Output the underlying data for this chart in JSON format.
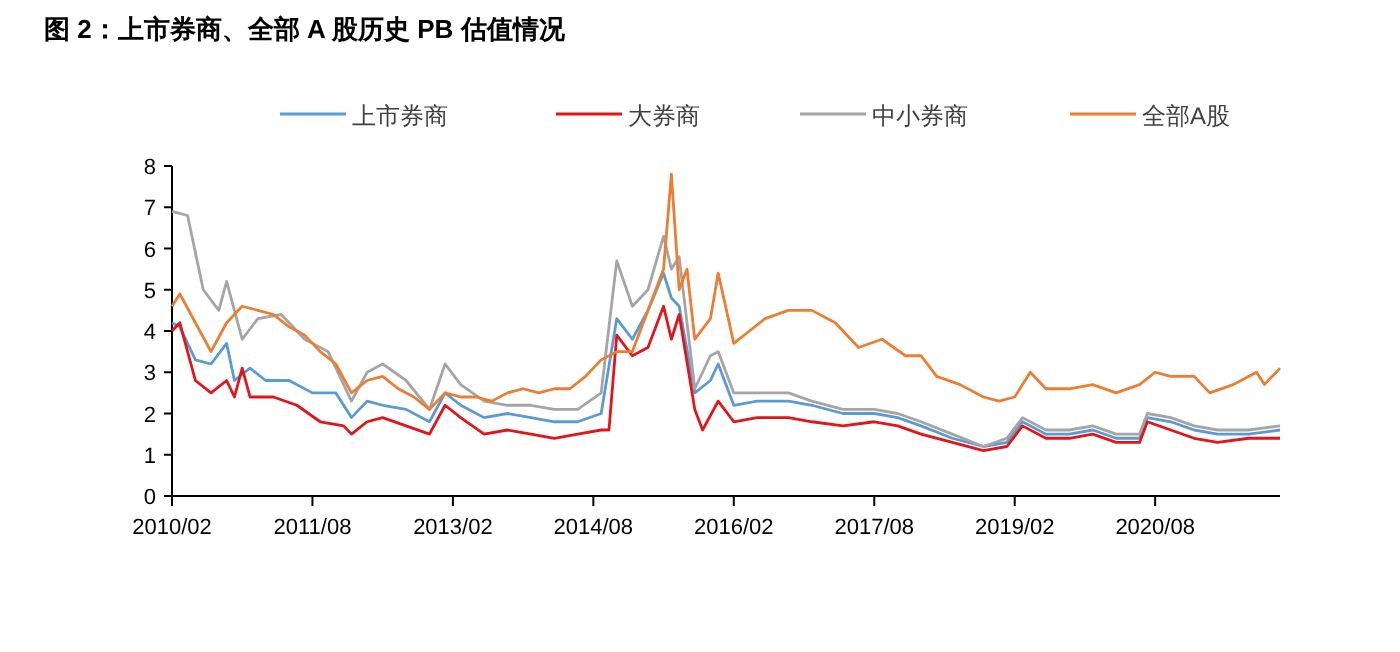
{
  "chart_data": {
    "type": "line",
    "title": "图 2：上市券商、全部 A 股历史 PB 估值情况",
    "xlim": [
      "2010-02",
      "2021-12"
    ],
    "xticks": [
      {
        "value": "2010-02",
        "label": "2010/02"
      },
      {
        "value": "2011-08",
        "label": "2011/08"
      },
      {
        "value": "2013-02",
        "label": "2013/02"
      },
      {
        "value": "2014-08",
        "label": "2014/08"
      },
      {
        "value": "2016-02",
        "label": "2016/02"
      },
      {
        "value": "2017-08",
        "label": "2017/08"
      },
      {
        "value": "2019-02",
        "label": "2019/02"
      },
      {
        "value": "2020-08",
        "label": "2020/08"
      }
    ],
    "ylim": [
      0,
      8
    ],
    "yticks": [
      0,
      1,
      2,
      3,
      4,
      5,
      6,
      7,
      8
    ],
    "legend": "top",
    "grid": false,
    "marker": "none",
    "line_style": "solid",
    "series": [
      {
        "name": "上市券商",
        "color": "#5b9bd5",
        "x": [
          "2010-02",
          "2010-03",
          "2010-05",
          "2010-07",
          "2010-09",
          "2010-10",
          "2010-12",
          "2011-02",
          "2011-05",
          "2011-08",
          "2011-11",
          "2012-01",
          "2012-03",
          "2012-05",
          "2012-08",
          "2012-11",
          "2013-01",
          "2013-03",
          "2013-06",
          "2013-09",
          "2013-12",
          "2014-03",
          "2014-06",
          "2014-09",
          "2014-11",
          "2015-01",
          "2015-03",
          "2015-05",
          "2015-06",
          "2015-07",
          "2015-09",
          "2015-11",
          "2015-12",
          "2016-02",
          "2016-05",
          "2016-09",
          "2016-12",
          "2017-04",
          "2017-08",
          "2017-11",
          "2018-02",
          "2018-06",
          "2018-10",
          "2019-01",
          "2019-03",
          "2019-06",
          "2019-09",
          "2019-12",
          "2020-03",
          "2020-06",
          "2020-07",
          "2020-10",
          "2021-01",
          "2021-04",
          "2021-08",
          "2021-12"
        ],
        "values": [
          4.2,
          4.1,
          3.3,
          3.2,
          3.7,
          2.8,
          3.1,
          2.8,
          2.8,
          2.5,
          2.5,
          1.9,
          2.3,
          2.2,
          2.1,
          1.8,
          2.5,
          2.2,
          1.9,
          2.0,
          1.9,
          1.8,
          1.8,
          2.0,
          4.3,
          3.8,
          4.5,
          5.4,
          4.8,
          4.6,
          2.5,
          2.8,
          3.2,
          2.2,
          2.3,
          2.3,
          2.2,
          2.0,
          2.0,
          1.9,
          1.7,
          1.4,
          1.2,
          1.3,
          1.8,
          1.5,
          1.5,
          1.6,
          1.4,
          1.4,
          1.9,
          1.8,
          1.6,
          1.5,
          1.5,
          1.6
        ]
      },
      {
        "name": "大券商",
        "color": "#e3151a",
        "x": [
          "2010-02",
          "2010-03",
          "2010-05",
          "2010-07",
          "2010-09",
          "2010-10",
          "2010-11",
          "2010-12",
          "2011-03",
          "2011-06",
          "2011-09",
          "2011-12",
          "2012-01",
          "2012-03",
          "2012-05",
          "2012-08",
          "2012-11",
          "2013-01",
          "2013-03",
          "2013-06",
          "2013-09",
          "2013-12",
          "2014-03",
          "2014-06",
          "2014-09",
          "2014-10",
          "2014-11",
          "2015-01",
          "2015-03",
          "2015-05",
          "2015-06",
          "2015-07",
          "2015-09",
          "2015-10",
          "2015-12",
          "2016-02",
          "2016-05",
          "2016-09",
          "2016-12",
          "2017-04",
          "2017-08",
          "2017-11",
          "2018-02",
          "2018-06",
          "2018-10",
          "2019-01",
          "2019-03",
          "2019-06",
          "2019-09",
          "2019-12",
          "2020-03",
          "2020-06",
          "2020-07",
          "2020-10",
          "2021-01",
          "2021-04",
          "2021-08",
          "2021-12"
        ],
        "values": [
          4.0,
          4.2,
          2.8,
          2.5,
          2.8,
          2.4,
          3.1,
          2.4,
          2.4,
          2.2,
          1.8,
          1.7,
          1.5,
          1.8,
          1.9,
          1.7,
          1.5,
          2.2,
          1.9,
          1.5,
          1.6,
          1.5,
          1.4,
          1.5,
          1.6,
          1.6,
          3.9,
          3.4,
          3.6,
          4.6,
          3.8,
          4.4,
          2.1,
          1.6,
          2.3,
          1.8,
          1.9,
          1.9,
          1.8,
          1.7,
          1.8,
          1.7,
          1.5,
          1.3,
          1.1,
          1.2,
          1.7,
          1.4,
          1.4,
          1.5,
          1.3,
          1.3,
          1.8,
          1.6,
          1.4,
          1.3,
          1.4,
          1.4
        ]
      },
      {
        "name": "中小券商",
        "color": "#a5a5a5",
        "x": [
          "2010-02",
          "2010-04",
          "2010-06",
          "2010-08",
          "2010-09",
          "2010-11",
          "2011-01",
          "2011-04",
          "2011-07",
          "2011-10",
          "2012-01",
          "2012-03",
          "2012-05",
          "2012-08",
          "2012-11",
          "2013-01",
          "2013-03",
          "2013-06",
          "2013-09",
          "2013-12",
          "2014-03",
          "2014-06",
          "2014-09",
          "2014-11",
          "2015-01",
          "2015-03",
          "2015-05",
          "2015-06",
          "2015-07",
          "2015-09",
          "2015-11",
          "2015-12",
          "2016-02",
          "2016-05",
          "2016-09",
          "2016-12",
          "2017-04",
          "2017-08",
          "2017-11",
          "2018-02",
          "2018-06",
          "2018-10",
          "2019-01",
          "2019-03",
          "2019-06",
          "2019-09",
          "2019-12",
          "2020-03",
          "2020-06",
          "2020-07",
          "2020-10",
          "2021-01",
          "2021-04",
          "2021-08",
          "2021-12"
        ],
        "values": [
          6.9,
          6.8,
          5.0,
          4.5,
          5.2,
          3.8,
          4.3,
          4.4,
          3.8,
          3.5,
          2.3,
          3.0,
          3.2,
          2.8,
          2.1,
          3.2,
          2.7,
          2.3,
          2.2,
          2.2,
          2.1,
          2.1,
          2.5,
          5.7,
          4.6,
          5.0,
          6.3,
          5.5,
          5.8,
          2.6,
          3.4,
          3.5,
          2.5,
          2.5,
          2.5,
          2.3,
          2.1,
          2.1,
          2.0,
          1.8,
          1.5,
          1.2,
          1.4,
          1.9,
          1.6,
          1.6,
          1.7,
          1.5,
          1.5,
          2.0,
          1.9,
          1.7,
          1.6,
          1.6,
          1.7
        ]
      },
      {
        "name": "全部A股",
        "color": "#ed7d31",
        "x": [
          "2010-02",
          "2010-03",
          "2010-05",
          "2010-07",
          "2010-09",
          "2010-11",
          "2011-01",
          "2011-03",
          "2011-05",
          "2011-07",
          "2011-09",
          "2011-11",
          "2012-01",
          "2012-03",
          "2012-05",
          "2012-07",
          "2012-09",
          "2012-11",
          "2013-01",
          "2013-03",
          "2013-05",
          "2013-07",
          "2013-09",
          "2013-11",
          "2014-01",
          "2014-03",
          "2014-05",
          "2014-07",
          "2014-09",
          "2014-11",
          "2015-01",
          "2015-03",
          "2015-05",
          "2015-06",
          "2015-07",
          "2015-08",
          "2015-09",
          "2015-11",
          "2015-12",
          "2016-02",
          "2016-04",
          "2016-06",
          "2016-09",
          "2016-12",
          "2017-03",
          "2017-06",
          "2017-09",
          "2017-12",
          "2018-02",
          "2018-04",
          "2018-07",
          "2018-10",
          "2018-12",
          "2019-02",
          "2019-04",
          "2019-06",
          "2019-09",
          "2019-12",
          "2020-03",
          "2020-06",
          "2020-08",
          "2020-10",
          "2021-01",
          "2021-03",
          "2021-06",
          "2021-09",
          "2021-10",
          "2021-12"
        ],
        "values": [
          4.6,
          4.9,
          4.2,
          3.5,
          4.2,
          4.6,
          4.5,
          4.4,
          4.1,
          3.9,
          3.5,
          3.2,
          2.5,
          2.8,
          2.9,
          2.6,
          2.4,
          2.1,
          2.5,
          2.4,
          2.4,
          2.3,
          2.5,
          2.6,
          2.5,
          2.6,
          2.6,
          2.9,
          3.3,
          3.5,
          3.5,
          4.5,
          5.5,
          7.8,
          5.0,
          5.5,
          3.8,
          4.3,
          5.4,
          3.7,
          4.0,
          4.3,
          4.5,
          4.5,
          4.2,
          3.6,
          3.8,
          3.4,
          3.4,
          2.9,
          2.7,
          2.4,
          2.3,
          2.4,
          3.0,
          2.6,
          2.6,
          2.7,
          2.5,
          2.7,
          3.0,
          2.9,
          2.9,
          2.5,
          2.7,
          3.0,
          2.7,
          3.1
        ]
      }
    ]
  }
}
